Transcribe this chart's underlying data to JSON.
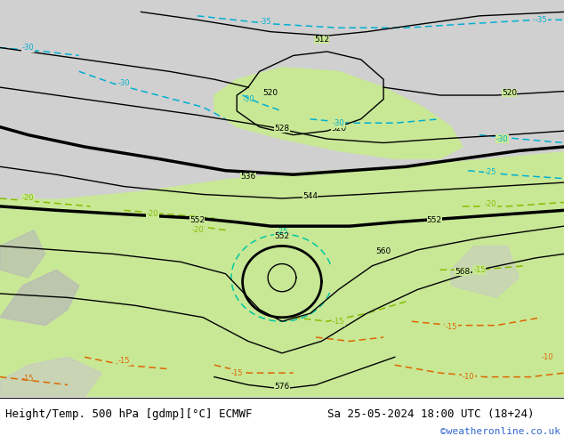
{
  "title_left": "Height/Temp. 500 hPa [gdmp][°C] ECMWF",
  "title_right": "Sa 25-05-2024 18:00 UTC (18+24)",
  "credit": "©weatheronline.co.uk",
  "sea_color": "#d0d0d0",
  "land_green": "#c8e896",
  "land_gray": "#c0c0c0",
  "contour_black": "#000000",
  "temp_cyan": "#00b0d0",
  "temp_teal": "#00c8a0",
  "temp_green": "#88bb00",
  "temp_orange": "#dd6600",
  "credit_color": "#3366cc",
  "font_size_title": 9,
  "font_size_credit": 8
}
